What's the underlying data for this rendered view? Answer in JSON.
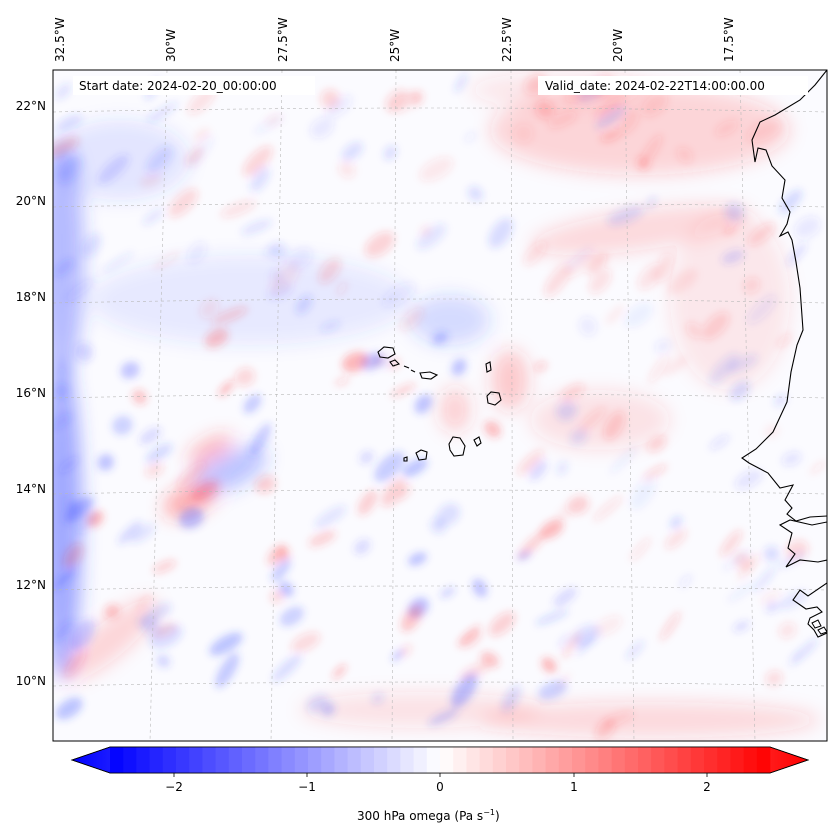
{
  "map": {
    "start_date_label": "Start date: 2024-02-20_00:00:00",
    "valid_date_label": "Valid_date: 2024-02-22T14:00:00.00",
    "lon_labels": [
      "32.5°W",
      "30°W",
      "27.5°W",
      "25°W",
      "22.5°W",
      "20°W",
      "17.5°W"
    ],
    "lat_labels": [
      "22°N",
      "20°N",
      "18°N",
      "16°N",
      "14°N",
      "12°N",
      "10°N"
    ],
    "field": "300 hPa omega",
    "colormap": "bwr",
    "colors": {
      "negative": "#0000ff",
      "zero": "#ffffff",
      "positive": "#ff0000",
      "coast": "#000000",
      "grid": "#b0b0b0"
    }
  },
  "colorbar": {
    "ticks": [
      "−2",
      "−1",
      "0",
      "1",
      "2"
    ],
    "min": -2.5,
    "max": 2.5,
    "label_main": "300 hPa omega (Pa s",
    "label_sup": "−1",
    "label_end": ")"
  }
}
